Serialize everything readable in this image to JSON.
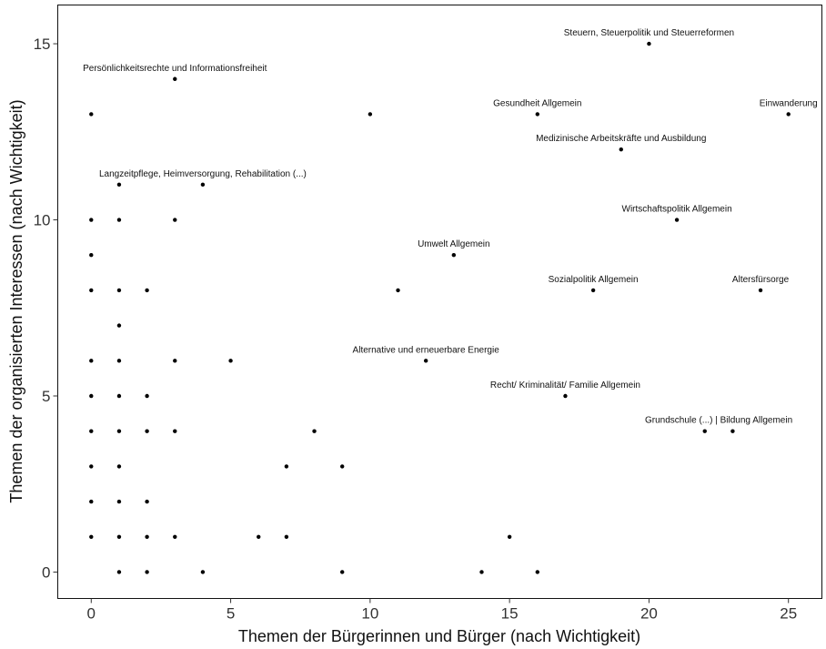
{
  "chart_data": {
    "type": "scatter",
    "title": "",
    "xlabel": "Themen der Bürgerinnen und Bürger (nach Wichtigkeit)",
    "ylabel": "Themen der organisierten Interessen (nach Wichtigkeit)",
    "xlim": [
      -1.2,
      26.2
    ],
    "ylim": [
      -0.75,
      16.1
    ],
    "xticks": [
      0,
      5,
      10,
      15,
      20,
      25
    ],
    "yticks": [
      0,
      5,
      10,
      15
    ],
    "grid": false,
    "points": [
      {
        "x": 0,
        "y": 13
      },
      {
        "x": 0,
        "y": 10
      },
      {
        "x": 0,
        "y": 9
      },
      {
        "x": 0,
        "y": 8
      },
      {
        "x": 0,
        "y": 6
      },
      {
        "x": 0,
        "y": 5
      },
      {
        "x": 0,
        "y": 4
      },
      {
        "x": 0,
        "y": 3
      },
      {
        "x": 0,
        "y": 2
      },
      {
        "x": 0,
        "y": 1
      },
      {
        "x": 1,
        "y": 11
      },
      {
        "x": 1,
        "y": 10
      },
      {
        "x": 1,
        "y": 8
      },
      {
        "x": 1,
        "y": 7
      },
      {
        "x": 1,
        "y": 6
      },
      {
        "x": 1,
        "y": 5
      },
      {
        "x": 1,
        "y": 4
      },
      {
        "x": 1,
        "y": 3
      },
      {
        "x": 1,
        "y": 2
      },
      {
        "x": 1,
        "y": 1
      },
      {
        "x": 1,
        "y": 0
      },
      {
        "x": 2,
        "y": 8
      },
      {
        "x": 2,
        "y": 5
      },
      {
        "x": 2,
        "y": 4
      },
      {
        "x": 2,
        "y": 2
      },
      {
        "x": 2,
        "y": 1
      },
      {
        "x": 2,
        "y": 0
      },
      {
        "x": 3,
        "y": 14
      },
      {
        "x": 3,
        "y": 10
      },
      {
        "x": 3,
        "y": 6
      },
      {
        "x": 3,
        "y": 4
      },
      {
        "x": 3,
        "y": 1
      },
      {
        "x": 4,
        "y": 11
      },
      {
        "x": 4,
        "y": 0
      },
      {
        "x": 5,
        "y": 6
      },
      {
        "x": 6,
        "y": 1
      },
      {
        "x": 7,
        "y": 3
      },
      {
        "x": 7,
        "y": 1
      },
      {
        "x": 8,
        "y": 4
      },
      {
        "x": 9,
        "y": 3
      },
      {
        "x": 9,
        "y": 0
      },
      {
        "x": 10,
        "y": 13
      },
      {
        "x": 11,
        "y": 8
      },
      {
        "x": 12,
        "y": 6
      },
      {
        "x": 13,
        "y": 9
      },
      {
        "x": 14,
        "y": 0
      },
      {
        "x": 15,
        "y": 1
      },
      {
        "x": 16,
        "y": 13
      },
      {
        "x": 16,
        "y": 0
      },
      {
        "x": 17,
        "y": 5
      },
      {
        "x": 18,
        "y": 8
      },
      {
        "x": 19,
        "y": 12
      },
      {
        "x": 20,
        "y": 15
      },
      {
        "x": 21,
        "y": 10
      },
      {
        "x": 22,
        "y": 4
      },
      {
        "x": 23,
        "y": 4
      },
      {
        "x": 24,
        "y": 8
      },
      {
        "x": 25,
        "y": 13
      }
    ],
    "annotations": [
      {
        "text": "Steuern, Steuerpolitik und Steuerreformen",
        "x": 20,
        "y": 15
      },
      {
        "text": "Persönlichkeitsrechte und Informationsfreiheit",
        "x": 3,
        "y": 14
      },
      {
        "text": "Gesundheit Allgemein",
        "x": 16,
        "y": 13
      },
      {
        "text": "Einwanderung",
        "x": 25,
        "y": 13
      },
      {
        "text": "Medizinische Arbeitskräfte und Ausbildung",
        "x": 19,
        "y": 12
      },
      {
        "text": "Langzeitpflege, Heimversorgung, Rehabilitation (...)",
        "x": 4,
        "y": 11
      },
      {
        "text": "Wirtschaftspolitik Allgemein",
        "x": 21,
        "y": 10
      },
      {
        "text": "Umwelt Allgemein",
        "x": 13,
        "y": 9
      },
      {
        "text": "Sozialpolitik Allgemein",
        "x": 18,
        "y": 8
      },
      {
        "text": "Altersfürsorge",
        "x": 24,
        "y": 8
      },
      {
        "text": "Alternative und erneuerbare Energie",
        "x": 12,
        "y": 6
      },
      {
        "text": "Recht/ Kriminalität/ Familie Allgemein",
        "x": 17,
        "y": 5
      },
      {
        "text": "Grundschule (...) | Bildung Allgemein",
        "x": 22.5,
        "y": 4
      }
    ]
  }
}
